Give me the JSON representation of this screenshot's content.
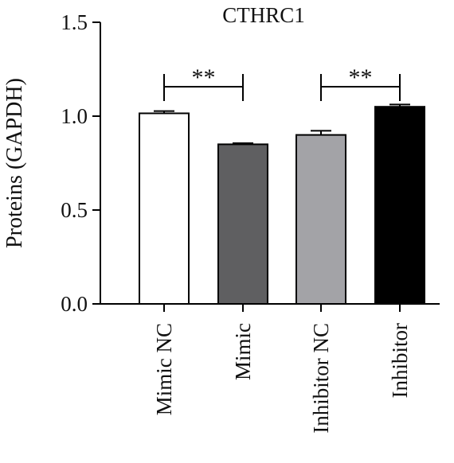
{
  "chart_data": {
    "type": "bar",
    "title": "CTHRC1",
    "xlabel": "",
    "ylabel": "Proteins (GAPDH)",
    "categories": [
      "Mimic NC",
      "Mimic",
      "Inhibitor NC",
      "Inhibitor"
    ],
    "values": [
      1.015,
      0.85,
      0.9,
      1.05
    ],
    "errors": [
      0.012,
      0.006,
      0.022,
      0.012
    ],
    "colors": [
      "#ffffff",
      "#5f5f61",
      "#a3a3a7",
      "#000000"
    ],
    "ylim": [
      0,
      1.5
    ],
    "yticks": [
      0.0,
      0.5,
      1.0,
      1.5
    ],
    "ytick_labels": [
      "0.0",
      "0.5",
      "1.0",
      "1.5"
    ],
    "grid": false,
    "legend": "none",
    "significance": [
      {
        "from": 0,
        "to": 1,
        "label": "**"
      },
      {
        "from": 2,
        "to": 3,
        "label": "**"
      }
    ]
  }
}
